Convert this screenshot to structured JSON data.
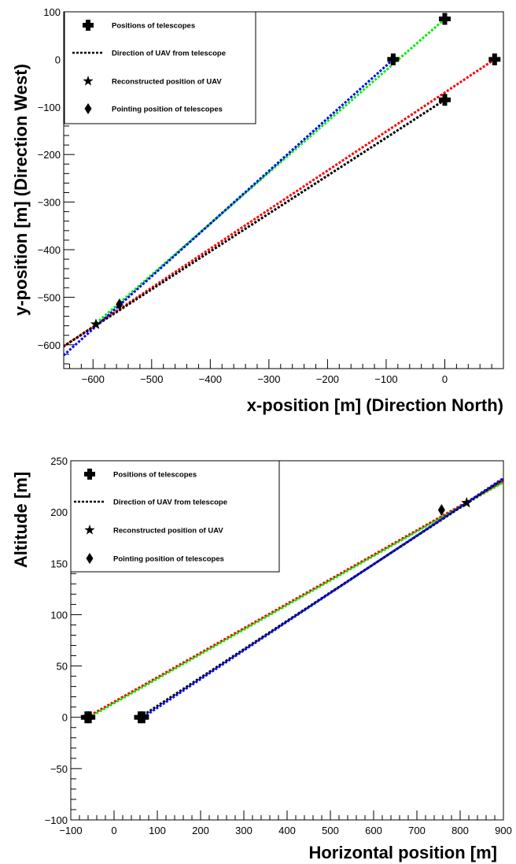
{
  "chart_data": [
    {
      "type": "line",
      "title": "",
      "xlabel": "x-position [m] (Direction North)",
      "ylabel": "y-position [m] (Direction West)",
      "xlim": [
        -650,
        100
      ],
      "ylim": [
        -650,
        100
      ],
      "xticks": [
        -600,
        -500,
        -400,
        -300,
        -200,
        -100,
        0
      ],
      "yticks": [
        -600,
        -500,
        -400,
        -300,
        -200,
        -100,
        0,
        100
      ],
      "grid": false,
      "legend_position": "top-left",
      "legend": [
        "Positions of telescopes",
        "Direction of UAV from telescope",
        "Reconstructed position of UAV",
        "Pointing position of telescopes"
      ],
      "series": [
        {
          "color": "#ff0000",
          "values": [
            [
              85,
              0
            ],
            [
              -650,
              -603
            ]
          ]
        },
        {
          "color": "#000000",
          "values": [
            [
              0,
              -85
            ],
            [
              -650,
              -603
            ]
          ]
        },
        {
          "color": "#00ee00",
          "values": [
            [
              0,
              85
            ],
            [
              -595,
              -555
            ]
          ]
        },
        {
          "color": "#0000ff",
          "values": [
            [
              -88,
              0
            ],
            [
              -650,
              -622
            ]
          ]
        }
      ],
      "telescopes": [
        [
          0,
          85
        ],
        [
          -88,
          0
        ],
        [
          0,
          -85
        ],
        [
          85,
          0
        ]
      ],
      "reconstructed": [
        [
          -595,
          -557
        ]
      ],
      "pointing": [
        [
          -555,
          -515
        ]
      ]
    },
    {
      "type": "line",
      "title": "",
      "xlabel": "Horizontal position [m]",
      "ylabel": "Altitude [m]",
      "xlim": [
        -100,
        900
      ],
      "ylim": [
        -100,
        250
      ],
      "xticks": [
        -100,
        0,
        100,
        200,
        300,
        400,
        500,
        600,
        700,
        800,
        900
      ],
      "yticks": [
        -100,
        -50,
        0,
        50,
        100,
        150,
        200,
        250
      ],
      "grid": false,
      "legend_position": "top-left",
      "legend": [
        "Positions of telescopes",
        "Direction of UAV from telescope",
        "Reconstructed position of UAV",
        "Pointing position of telescopes"
      ],
      "series": [
        {
          "color": "#ff0000",
          "values": [
            [
              -63,
              0
            ],
            [
              900,
              230
            ]
          ]
        },
        {
          "color": "#00ee00",
          "values": [
            [
              -57,
              0
            ],
            [
              900,
              229
            ]
          ]
        },
        {
          "color": "#000000",
          "values": [
            [
              60,
              0
            ],
            [
              900,
              232
            ]
          ]
        },
        {
          "color": "#0000ff",
          "values": [
            [
              67,
              0
            ],
            [
              900,
              233
            ]
          ]
        }
      ],
      "telescopes": [
        [
          -63,
          0
        ],
        [
          -57,
          0
        ],
        [
          60,
          0
        ],
        [
          67,
          0
        ]
      ],
      "reconstructed": [
        [
          815,
          209
        ]
      ],
      "pointing": [
        [
          757,
          202
        ]
      ]
    }
  ]
}
